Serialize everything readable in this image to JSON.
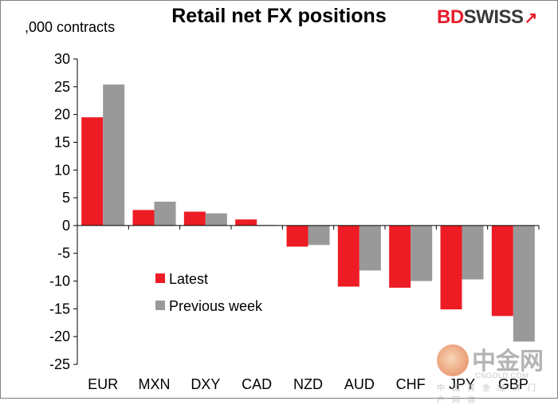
{
  "header": {
    "title": "Retail net FX positions",
    "unit_label": ",000 contracts",
    "logo_bd": "BD",
    "logo_swiss": "SWISS",
    "logo_mark": "↗"
  },
  "watermark": {
    "cn": "中金网",
    "en": "CNGOLD.COM",
    "sub": "中国黄金经济门户网体"
  },
  "colors": {
    "latest": "#ed1c24",
    "previous": "#999999",
    "axis": "#000000"
  },
  "chart_data": {
    "type": "bar",
    "title": "Retail net FX positions",
    "ylabel": ",000 contracts",
    "xlabel": "",
    "categories": [
      "EUR",
      "MXN",
      "DXY",
      "CAD",
      "NZD",
      "AUD",
      "CHF",
      "JPY",
      "GBP"
    ],
    "series": [
      {
        "name": "Latest",
        "values": [
          19.5,
          2.8,
          2.5,
          1.1,
          -3.8,
          -11.0,
          -11.2,
          -15.1,
          -16.3
        ]
      },
      {
        "name": "Previous week",
        "values": [
          25.4,
          4.3,
          2.2,
          0.1,
          -3.5,
          -8.1,
          -10.0,
          -9.7,
          -20.9
        ]
      }
    ],
    "ylim": [
      -25,
      30
    ],
    "yticks": [
      30,
      25,
      20,
      15,
      10,
      5,
      0,
      -5,
      -10,
      -15,
      -20,
      -25
    ],
    "grid": false,
    "legend_position": "lower-left inside plot"
  }
}
